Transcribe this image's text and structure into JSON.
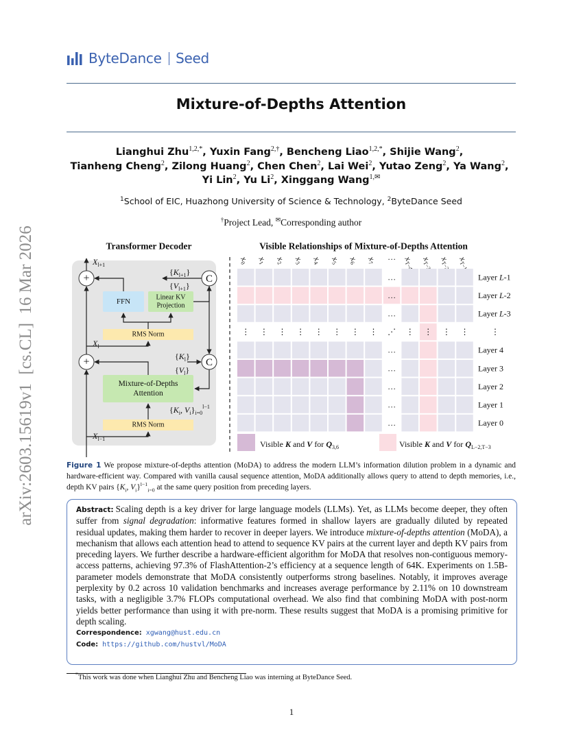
{
  "header": {
    "brand": "ByteDance",
    "product": "Seed"
  },
  "side_label": "arXiv:2603.15619v1  [cs.CL]  16 Mar 2026",
  "title": "Mixture-of-Depths Attention",
  "author_separator": ", ",
  "authors": [
    [
      {
        "name": "Lianghui Zhu",
        "sup": "1,2,*"
      },
      {
        "name": "Yuxin Fang",
        "sup": "2,†"
      },
      {
        "name": "Bencheng Liao",
        "sup": "1,2,*"
      },
      {
        "name": "Shijie Wang",
        "sup": "2"
      }
    ],
    [
      {
        "name": "Tianheng Cheng",
        "sup": "2"
      },
      {
        "name": "Zilong Huang",
        "sup": "2"
      },
      {
        "name": "Chen Chen",
        "sup": "2"
      },
      {
        "name": "Lai Wei",
        "sup": "2"
      },
      {
        "name": "Yutao Zeng",
        "sup": "2"
      },
      {
        "name": "Ya Wang",
        "sup": "2"
      }
    ],
    [
      {
        "name": "Yi Lin",
        "sup": "2"
      },
      {
        "name": "Yu Li",
        "sup": "2"
      },
      {
        "name": "Xinggang Wang",
        "sup": "1,✉"
      }
    ]
  ],
  "affiliations": [
    {
      "sup": "1",
      "text": "School of EIC, Huazhong University of Science & Technology, "
    },
    {
      "sup": "2",
      "text": "ByteDance Seed"
    }
  ],
  "roles": [
    {
      "sup": "†",
      "text": "Project Lead, "
    },
    {
      "sup": "✉",
      "text": "Corresponding author"
    }
  ],
  "figure": {
    "left": {
      "title": "Transformer Decoder",
      "add": "+",
      "concat": "C",
      "x_top": [
        {
          "text": "X",
          "style": "italic"
        },
        {
          "text": "l+1",
          "style": "sub"
        }
      ],
      "k_top": [
        "{",
        {
          "text": "K",
          "style": "italic"
        },
        {
          "text": "l+1",
          "style": "sub"
        },
        "}"
      ],
      "v_top": [
        "{",
        {
          "text": "V",
          "style": "italic"
        },
        {
          "text": "l+1",
          "style": "sub"
        },
        "}"
      ],
      "ffn": "FFN",
      "kv_proj": [
        "Linear KV",
        "Projection"
      ],
      "norm_top": "RMS Norm",
      "x_mid": [
        {
          "text": "X",
          "style": "italic"
        },
        {
          "text": "l",
          "style": "sub"
        }
      ],
      "k_mid": [
        "{",
        {
          "text": "K",
          "style": "italic"
        },
        {
          "text": "l",
          "style": "sub"
        },
        "}"
      ],
      "v_mid": [
        "{",
        {
          "text": "V",
          "style": "italic"
        },
        {
          "text": "l",
          "style": "sub"
        },
        "}"
      ],
      "moda": [
        "Mixture-of-Depths",
        "Attention"
      ],
      "kv_depth": [
        "{",
        {
          "text": "K",
          "style": "italic"
        },
        {
          "text": "i",
          "style": "sub"
        },
        ", ",
        {
          "text": "V",
          "style": "italic"
        },
        {
          "text": "i",
          "style": "sub"
        },
        "}",
        {
          "text": "i=0",
          "style": "sub"
        },
        {
          "text": "l−1",
          "style": "sup"
        }
      ],
      "norm_bottom": "RMS Norm",
      "x_bottom": [
        {
          "text": "X",
          "style": "italic"
        },
        {
          "text": "l−1",
          "style": "sub"
        }
      ]
    },
    "right": {
      "title": "Visible Relationships of Mixture-of-Depths Attention",
      "ellipsis": "…",
      "vdots": "⋮",
      "ddots": "⋰",
      "columns": [
        [
          {
            "text": "x",
            "style": "italic"
          },
          {
            "text": "0",
            "style": "sub"
          }
        ],
        [
          {
            "text": "x",
            "style": "italic"
          },
          {
            "text": "1",
            "style": "sub"
          }
        ],
        [
          {
            "text": "x",
            "style": "italic"
          },
          {
            "text": "2",
            "style": "sub"
          }
        ],
        [
          {
            "text": "x",
            "style": "italic"
          },
          {
            "text": "3",
            "style": "sub"
          }
        ],
        [
          {
            "text": "x",
            "style": "italic"
          },
          {
            "text": "4",
            "style": "sub"
          }
        ],
        [
          {
            "text": "x",
            "style": "italic"
          },
          {
            "text": "5",
            "style": "sub"
          }
        ],
        [
          {
            "text": "x",
            "style": "italic"
          },
          {
            "text": "6",
            "style": "sub"
          }
        ],
        [
          {
            "text": "x",
            "style": "italic"
          },
          {
            "text": "7",
            "style": "sub"
          }
        ],
        [
          "…"
        ],
        [
          {
            "text": "x",
            "style": "italic"
          },
          {
            "text": "T−4",
            "style": "sub"
          }
        ],
        [
          {
            "text": "x",
            "style": "italic"
          },
          {
            "text": "T−3",
            "style": "sub"
          }
        ],
        [
          {
            "text": "x",
            "style": "italic"
          },
          {
            "text": "T−2",
            "style": "sub"
          }
        ],
        [
          {
            "text": "x",
            "style": "italic"
          },
          {
            "text": "T−1",
            "style": "sub"
          }
        ]
      ],
      "rows": [
        [
          "Layer ",
          {
            "text": "L",
            "style": "italic"
          },
          "-1"
        ],
        [
          "Layer ",
          {
            "text": "L",
            "style": "italic"
          },
          "-2"
        ],
        [
          "Layer ",
          {
            "text": "L",
            "style": "italic"
          },
          "-3"
        ],
        [
          "⋮"
        ],
        [
          "Layer 4"
        ],
        [
          "Layer 3"
        ],
        [
          "Layer 2"
        ],
        [
          "Layer 1"
        ],
        [
          "Layer 0"
        ]
      ],
      "legend": [
        [
          "Visible ",
          {
            "text": "K",
            "style": "bold-italic"
          },
          " and ",
          {
            "text": "V",
            "style": "bold-italic"
          },
          " for ",
          {
            "text": "Q",
            "style": "bold-italic"
          },
          {
            "text": "3,6",
            "style": "sub"
          }
        ],
        [
          "Visible ",
          {
            "text": "K",
            "style": "bold-italic"
          },
          " and ",
          {
            "text": "V",
            "style": "bold-italic"
          },
          " for ",
          {
            "text": "Q",
            "style": "bold-italic"
          },
          {
            "text": "L−2,T−3",
            "style": "sub"
          }
        ]
      ]
    }
  },
  "caption": {
    "label": "Figure 1",
    "parts": [
      "We propose mixture-of-depths attention (MoDA) to address the modern LLM’s information dilution problem in a dynamic and hardware-efficient way. Compared with vanilla causal sequence attention, MoDA additionally allows query to attend to depth memories, i.e., depth KV pairs {",
      {
        "text": "K",
        "style": "italic"
      },
      {
        "text": "i",
        "style": "sub"
      },
      ", ",
      {
        "text": "V",
        "style": "italic"
      },
      {
        "text": "i",
        "style": "sub"
      },
      "}",
      {
        "text": "l−1",
        "style": "sup"
      },
      {
        "text": "i=0",
        "style": "sub"
      },
      " at the same query position from preceding layers."
    ]
  },
  "abstract": {
    "label": "Abstract:",
    "parts": [
      "Scaling depth is a key driver for large language models (LLMs). Yet, as LLMs become deeper, they often suffer from ",
      {
        "text": "signal degradation",
        "style": "italic"
      },
      ": informative features formed in shallow layers are gradually diluted by repeated residual updates, making them harder to recover in deeper layers. We introduce ",
      {
        "text": "mixture-of-depths attention",
        "style": "italic"
      },
      " (MoDA), a mechanism that allows each attention head to attend to sequence KV pairs at the current layer and depth KV pairs from preceding layers. We further describe a hardware-efficient algorithm for MoDA that resolves non-contiguous memory-access patterns, achieving 97.3% of FlashAttention-2’s efficiency at a sequence length of 64K. Experiments on 1.5B-parameter models demonstrate that MoDA consistently outperforms strong baselines. Notably, it improves average perplexity by 0.2 across 10 validation benchmarks and increases average performance by 2.11% on 10 downstream tasks, with a negligible 3.7% FLOPs computational overhead. We also find that combining MoDA with post-norm yields better performance than using it with pre-norm. These results suggest that MoDA is a promising primitive for depth scaling."
    ]
  },
  "correspondence": {
    "label": "Correspondence:",
    "value": "xgwang@hust.edu.cn"
  },
  "code": {
    "label": "Code:",
    "value": "https://github.com/hustvl/MoDA"
  },
  "footnote": {
    "mark": "*",
    "text": "This work was done when Lianghui Zhu and Bencheng Liao was interning at ByteDance Seed."
  },
  "page_number": "1"
}
